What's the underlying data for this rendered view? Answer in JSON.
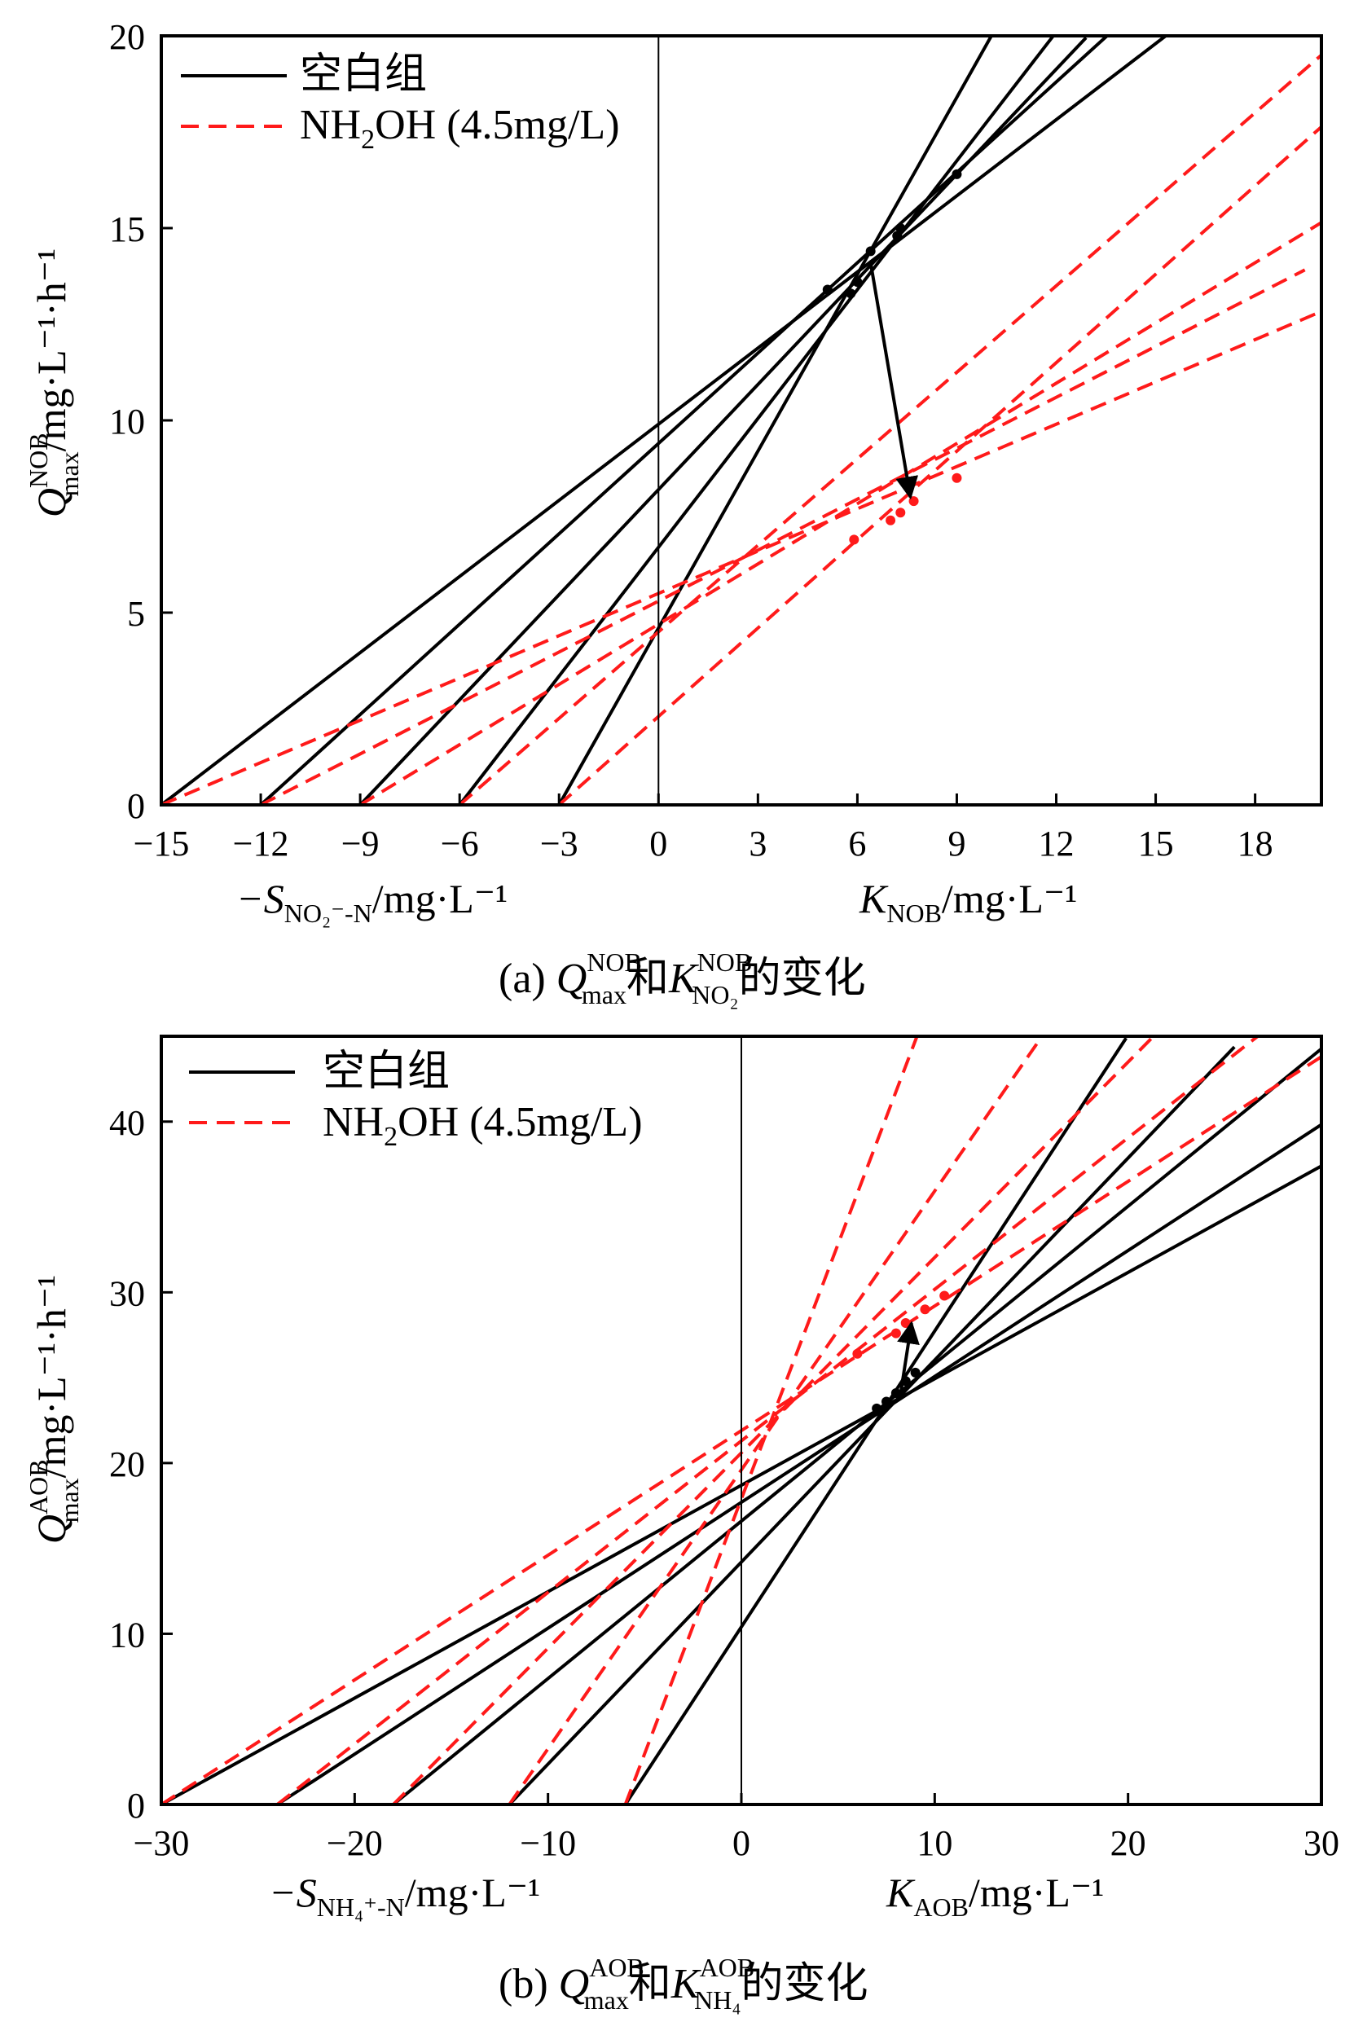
{
  "chart_data": [
    {
      "id": "a",
      "type": "line",
      "xlim": [
        -15,
        20
      ],
      "ylim": [
        0,
        20
      ],
      "xticks": [
        -15,
        -12,
        -9,
        -6,
        -3,
        0,
        3,
        6,
        9,
        12,
        15,
        18
      ],
      "xtick_labels": [
        "−15",
        "−12",
        "−9",
        "−6",
        "−3",
        "0",
        "3",
        "6",
        "9",
        "12",
        "15",
        "18"
      ],
      "yticks": [
        0,
        5,
        10,
        15,
        20
      ],
      "ytick_labels": [
        "0",
        "5",
        "10",
        "15",
        "20"
      ],
      "ylabel": {
        "main": "Q",
        "sup": "NOB",
        "sub": "max",
        "unit": "/mg·L⁻¹·h⁻¹"
      },
      "xlabel_left": {
        "sign": "−S",
        "sub": "NO₂⁻-N",
        "unit": "/mg·L⁻¹"
      },
      "xlabel_right": {
        "main": "K",
        "sub": "NOB",
        "unit": "/mg·L⁻¹"
      },
      "legend": [
        {
          "label": "空白组",
          "style": "solid",
          "color": "#000000"
        },
        {
          "label": "NH₂OH (4.5mg/L)",
          "style": "dashed",
          "color": "#ff1a1a"
        }
      ],
      "series": [
        {
          "name": "空白组",
          "style": "solid",
          "color": "#000000",
          "lines": [
            {
              "x0": -15,
              "y_int": 9.9,
              "x_end": 15.4
            },
            {
              "x0": -12,
              "y_int": 9.4,
              "x_end": 13.6
            },
            {
              "x0": -9,
              "y_int": 8.2,
              "x_end": 12.9
            },
            {
              "x0": -6,
              "y_int": 6.7,
              "x_end": 11.9
            },
            {
              "x0": -3,
              "y_int": 4.6,
              "x_end": 10.1
            }
          ],
          "markers": [
            [
              5.1,
              13.4
            ],
            [
              5.8,
              13.3
            ],
            [
              6.0,
              13.6
            ],
            [
              6.4,
              14.4
            ],
            [
              7.2,
              14.8
            ],
            [
              7.3,
              15.0
            ],
            [
              9.0,
              16.4
            ]
          ]
        },
        {
          "name": "NH₂OH (4.5mg/L)",
          "style": "dashed",
          "color": "#ff1a1a",
          "lines": [
            {
              "x0": -15,
              "y_int": 5.5,
              "x_end": 20.0
            },
            {
              "x0": -12,
              "y_int": 5.3,
              "x_end": 19.5
            },
            {
              "x0": -9,
              "y_int": 4.7,
              "x_end": 20.0
            },
            {
              "x0": -6,
              "y_int": 4.5,
              "x_end": 20.0
            },
            {
              "x0": -3,
              "y_int": 2.3,
              "x_end": 20.0
            }
          ],
          "markers": [
            [
              5.9,
              6.9
            ],
            [
              7.0,
              7.4
            ],
            [
              7.3,
              7.6
            ],
            [
              7.7,
              7.9
            ],
            [
              9.0,
              8.5
            ]
          ]
        }
      ],
      "arrow": {
        "from": [
          6.4,
          14.1
        ],
        "to": [
          7.6,
          8.0
        ]
      },
      "caption": {
        "prefix": "(a) ",
        "q": "Q",
        "q_sup": "NOB",
        "q_sub": "max",
        "mid": "和",
        "k": "K",
        "k_sup": "NOB",
        "k_sub": "NO₂",
        "suffix": "的变化"
      }
    },
    {
      "id": "b",
      "type": "line",
      "xlim": [
        -30,
        30
      ],
      "ylim": [
        0,
        45
      ],
      "xticks": [
        -30,
        -20,
        -10,
        0,
        10,
        20,
        30
      ],
      "xtick_labels": [
        "−30",
        "−20",
        "−10",
        "0",
        "10",
        "20",
        "30"
      ],
      "yticks": [
        0,
        10,
        20,
        30,
        40
      ],
      "ytick_labels": [
        "0",
        "10",
        "20",
        "30",
        "40"
      ],
      "ylabel": {
        "main": "Q",
        "sup": "AOB",
        "sub": "max",
        "unit": "/mg·L⁻¹·h⁻¹"
      },
      "xlabel_left": {
        "sign": "−S",
        "sub": "NH₄⁺-N",
        "unit": "/mg·L⁻¹"
      },
      "xlabel_right": {
        "main": "K",
        "sub": "AOB",
        "unit": "/mg·L⁻¹"
      },
      "legend": [
        {
          "label": "空白组",
          "style": "solid",
          "color": "#000000"
        },
        {
          "label": "NH₂OH (4.5mg/L)",
          "style": "dashed",
          "color": "#ff1a1a"
        }
      ],
      "series": [
        {
          "name": "空白组",
          "style": "solid",
          "color": "#000000",
          "lines": [
            {
              "x0": -30,
              "y_int": 18.7,
              "x_end": 30.0
            },
            {
              "x0": -24,
              "y_int": 17.7,
              "x_end": 30.0
            },
            {
              "x0": -18,
              "y_int": 16.6,
              "x_end": 30.0
            },
            {
              "x0": -12,
              "y_int": 14.2,
              "x_end": 25.5
            },
            {
              "x0": -6,
              "y_int": 10.4,
              "x_end": 19.9
            }
          ],
          "markers": [
            [
              7.0,
              23.2
            ],
            [
              7.5,
              23.6
            ],
            [
              8.0,
              24.1
            ],
            [
              8.5,
              24.8
            ],
            [
              9.0,
              25.3
            ]
          ]
        },
        {
          "name": "NH₂OH (4.5mg/L)",
          "style": "dashed",
          "color": "#ff1a1a",
          "lines": [
            {
              "x0": -30,
              "y_int": 21.9,
              "x_end": 30.0
            },
            {
              "x0": -24,
              "y_int": 21.3,
              "x_end": 27.0
            },
            {
              "x0": -18,
              "y_int": 20.6,
              "x_end": 21.3
            },
            {
              "x0": -12,
              "y_int": 19.6,
              "x_end": 15.6
            },
            {
              "x0": -6,
              "y_int": 17.9,
              "x_end": 9.1
            }
          ],
          "markers": [
            [
              6.0,
              26.4
            ],
            [
              8.0,
              27.6
            ],
            [
              8.5,
              28.2
            ],
            [
              9.5,
              29.0
            ],
            [
              10.5,
              29.8
            ]
          ]
        }
      ],
      "arrow": {
        "from": [
          8.2,
          23.8
        ],
        "to": [
          8.8,
          28.2
        ]
      },
      "caption": {
        "prefix": "(b) ",
        "q": "Q",
        "q_sup": "AOB",
        "q_sub": "max",
        "mid": "和",
        "k": "K",
        "k_sup": "AOB",
        "k_sub": "NH₄",
        "suffix": "的变化"
      }
    }
  ]
}
